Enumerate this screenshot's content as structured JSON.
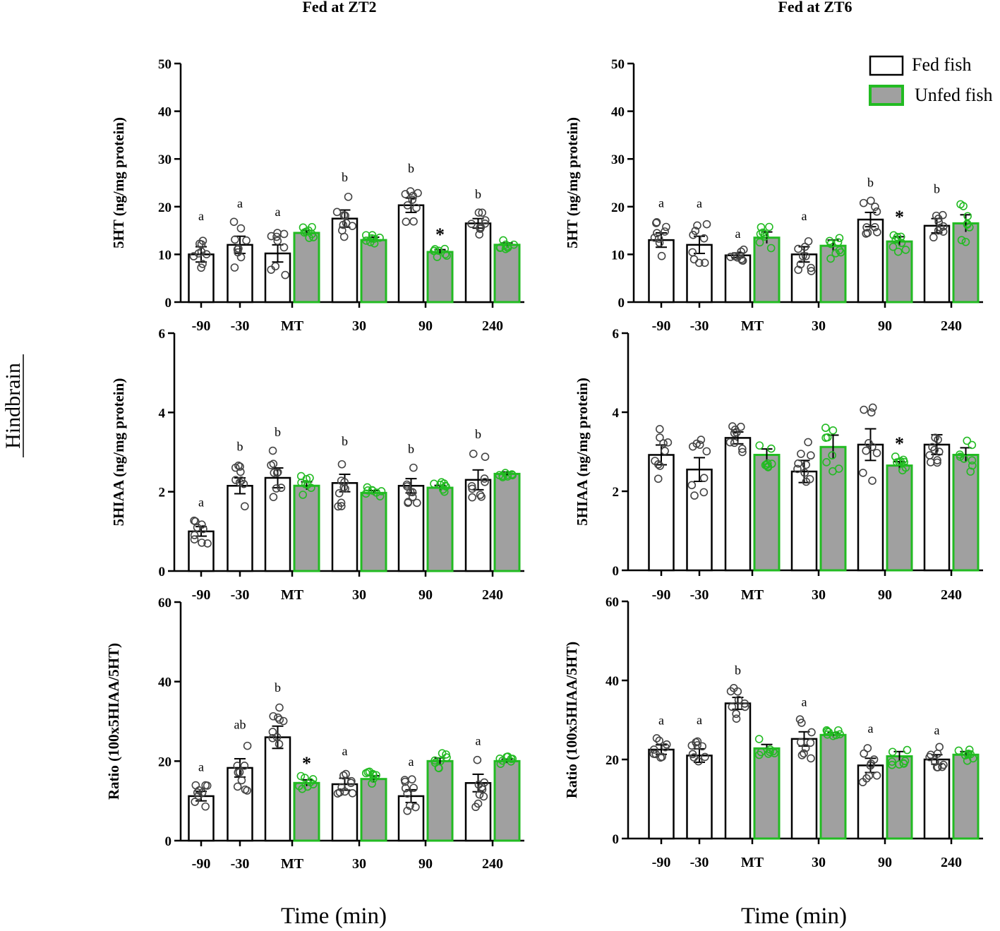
{
  "figure": {
    "region_label": "Hindbrain",
    "column_titles": [
      "Fed at ZT2",
      "Fed at ZT6"
    ],
    "x_title": "Time (min)",
    "legend": {
      "fed_label": "Fed fish",
      "unfed_label": "Unfed fish"
    },
    "colors": {
      "fed_fill": "#ffffff",
      "unfed_fill": "#a0a0a0",
      "unfed_edge": "#22bb22",
      "axis": "#000000"
    }
  },
  "chart_data": [
    {
      "id": "zt2_5ht",
      "type": "bar",
      "title": "Fed at ZT2",
      "ylabel": "5HT (ng/mg protein)",
      "xlabel": "Time (min)",
      "ylim": [
        0,
        50
      ],
      "yticks": [
        0,
        10,
        20,
        30,
        40,
        50
      ],
      "categories": [
        "-90",
        "-30",
        "MT",
        "30",
        "90",
        "240"
      ],
      "series": [
        {
          "name": "Fed fish",
          "values": [
            10,
            12,
            10.2,
            17.5,
            20.3,
            16.5
          ],
          "sem": [
            1.6,
            1.8,
            1.8,
            1.8,
            1.5,
            1.0
          ]
        },
        {
          "name": "Unfed fish",
          "values": [
            null,
            null,
            14.5,
            13,
            10.5,
            12
          ],
          "sem": [
            null,
            null,
            0.5,
            0.6,
            0.5,
            0.4
          ]
        }
      ],
      "letters": [
        "a",
        "a",
        "a",
        "b",
        "b",
        "b"
      ],
      "stars": [
        "",
        "",
        "",
        "",
        "*",
        ""
      ]
    },
    {
      "id": "zt2_5hiaa",
      "type": "bar",
      "ylabel": "5HIAA (ng/mg protein)",
      "xlabel": "Time (min)",
      "ylim": [
        0,
        6
      ],
      "yticks": [
        0,
        2,
        4,
        6
      ],
      "categories": [
        "-90",
        "-30",
        "MT",
        "30",
        "90",
        "240"
      ],
      "series": [
        {
          "name": "Fed fish",
          "values": [
            1.0,
            2.15,
            2.35,
            2.22,
            2.15,
            2.3
          ],
          "sem": [
            0.12,
            0.2,
            0.25,
            0.22,
            0.18,
            0.25
          ]
        },
        {
          "name": "Unfed fish",
          "values": [
            null,
            null,
            2.15,
            1.97,
            2.1,
            2.45
          ],
          "sem": [
            null,
            null,
            0.1,
            0.06,
            0.06,
            0.05
          ]
        }
      ],
      "letters": [
        "a",
        "b",
        "b",
        "b",
        "b",
        "b"
      ],
      "stars": [
        "",
        "",
        "",
        "",
        "",
        ""
      ]
    },
    {
      "id": "zt2_ratio",
      "type": "bar",
      "ylabel": "Ratio (100x5HIAA/5HT)",
      "xlabel": "Time (min)",
      "ylim": [
        0,
        60
      ],
      "yticks": [
        0,
        20,
        40,
        60
      ],
      "categories": [
        "-90",
        "-30",
        "MT",
        "30",
        "90",
        "240"
      ],
      "series": [
        {
          "name": "Fed fish",
          "values": [
            11.2,
            18.3,
            26,
            14.2,
            11.2,
            14.5
          ],
          "sem": [
            1.2,
            2.3,
            2.8,
            1.5,
            1.6,
            2.2
          ]
        },
        {
          "name": "Unfed fish",
          "values": [
            null,
            null,
            14.5,
            15.5,
            20,
            20
          ],
          "sem": [
            null,
            null,
            0.8,
            0.8,
            0.8,
            0.5
          ]
        }
      ],
      "letters": [
        "a",
        "ab",
        "b",
        "a",
        "a",
        "a"
      ],
      "stars": [
        "",
        "",
        "*",
        "",
        "",
        ""
      ]
    },
    {
      "id": "zt6_5ht",
      "type": "bar",
      "title": "Fed at ZT6",
      "ylabel": "5HT (ng/mg protein)",
      "xlabel": "Time (min)",
      "ylim": [
        0,
        50
      ],
      "yticks": [
        0,
        10,
        20,
        30,
        40,
        50
      ],
      "categories": [
        "-90",
        "-30",
        "MT",
        "30",
        "90",
        "240"
      ],
      "series": [
        {
          "name": "Fed fish",
          "values": [
            13,
            12,
            9.8,
            10,
            17.3,
            16
          ],
          "sem": [
            1.5,
            1.8,
            0.5,
            1.6,
            1.5,
            1.5
          ]
        },
        {
          "name": "Unfed fish",
          "values": [
            null,
            null,
            13.5,
            11.8,
            12.7,
            16.5
          ],
          "sem": [
            null,
            null,
            1.2,
            1.2,
            1.0,
            1.8
          ]
        }
      ],
      "letters": [
        "a",
        "a",
        "a",
        "a",
        "b",
        "b"
      ],
      "stars": [
        "",
        "",
        "",
        "",
        "*",
        ""
      ]
    },
    {
      "id": "zt6_5hiaa",
      "type": "bar",
      "ylabel": "5HIAA (ng/mg protein)",
      "xlabel": "Time (min)",
      "ylim": [
        0,
        6
      ],
      "yticks": [
        0,
        2,
        4,
        6
      ],
      "categories": [
        "-90",
        "-30",
        "MT",
        "30",
        "90",
        "240"
      ],
      "series": [
        {
          "name": "Fed fish",
          "values": [
            2.92,
            2.55,
            3.35,
            2.5,
            3.18,
            3.18
          ],
          "sem": [
            0.25,
            0.3,
            0.15,
            0.28,
            0.4,
            0.25
          ]
        },
        {
          "name": "Unfed fish",
          "values": [
            null,
            null,
            2.92,
            3.12,
            2.65,
            2.92
          ],
          "sem": [
            null,
            null,
            0.15,
            0.3,
            0.1,
            0.18
          ]
        }
      ],
      "letters": [
        "",
        "",
        "",
        "",
        "",
        ""
      ],
      "stars": [
        "",
        "",
        "",
        "",
        "*",
        ""
      ]
    },
    {
      "id": "zt6_ratio",
      "type": "bar",
      "ylabel": "Ratio (100x5HIAA/5HT)",
      "xlabel": "Time (min)",
      "ylim": [
        0,
        60
      ],
      "yticks": [
        0,
        20,
        40,
        60
      ],
      "categories": [
        "-90",
        "-30",
        "MT",
        "30",
        "90",
        "240"
      ],
      "series": [
        {
          "name": "Fed fish",
          "values": [
            22.5,
            21,
            34.2,
            25.2,
            18.5,
            20
          ],
          "sem": [
            1.2,
            1.7,
            1.5,
            1.8,
            1.8,
            1.2
          ]
        },
        {
          "name": "Unfed fish",
          "values": [
            null,
            null,
            22.8,
            26.2,
            20.8,
            21.2
          ],
          "sem": [
            null,
            null,
            1.0,
            0.6,
            1.2,
            0.8
          ]
        }
      ],
      "letters": [
        "a",
        "a",
        "b",
        "a",
        "a",
        "a"
      ],
      "stars": [
        "",
        "",
        "",
        "",
        "",
        ""
      ]
    }
  ]
}
